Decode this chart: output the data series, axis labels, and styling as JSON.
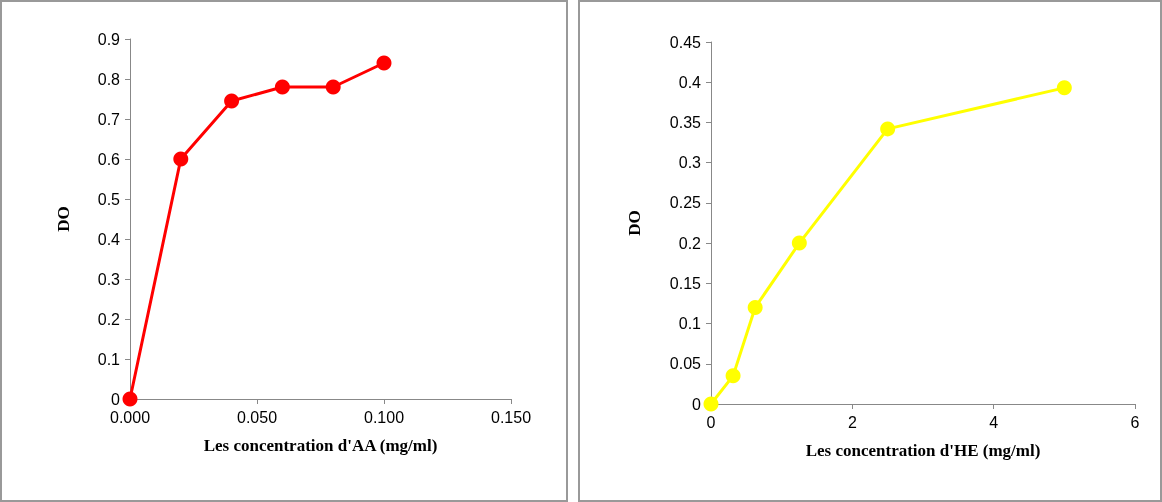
{
  "chart_data": [
    {
      "type": "line",
      "xlabel": "Les concentration d'AA (mg/ml)",
      "ylabel": "DO",
      "marker": "circle",
      "grid": false,
      "series": [
        {
          "color": "#ff0000",
          "x": [
            0,
            0.02,
            0.04,
            0.06,
            0.08,
            0.1
          ],
          "values": [
            0,
            0.6,
            0.745,
            0.78,
            0.78,
            0.84
          ]
        }
      ],
      "xlim": [
        0,
        0.15
      ],
      "xticks": [
        {
          "value": 0,
          "label": "0.000"
        },
        {
          "value": 0.05,
          "label": "0.050"
        },
        {
          "value": 0.1,
          "label": "0.100"
        },
        {
          "value": 0.15,
          "label": "0.150"
        }
      ],
      "ylim": [
        0,
        0.9
      ],
      "yticks": [
        0,
        0.1,
        0.2,
        0.3,
        0.4,
        0.5,
        0.6,
        0.7,
        0.8,
        0.9
      ]
    },
    {
      "type": "line",
      "xlabel": "Les concentration d'HE (mg/ml)",
      "ylabel": "DO",
      "marker": "circle",
      "grid": false,
      "series": [
        {
          "color": "#ffff00",
          "x": [
            0,
            0.3125,
            0.625,
            1.25,
            2.5,
            5
          ],
          "values": [
            0,
            0.035,
            0.12,
            0.2,
            0.342,
            0.393
          ]
        }
      ],
      "xlim": [
        0,
        6
      ],
      "xticks": [
        0,
        2,
        4,
        6
      ],
      "ylim": [
        0,
        0.45
      ],
      "yticks": [
        0,
        0.05,
        0.1,
        0.15,
        0.2,
        0.25,
        0.3,
        0.35,
        0.4,
        0.45
      ]
    }
  ]
}
